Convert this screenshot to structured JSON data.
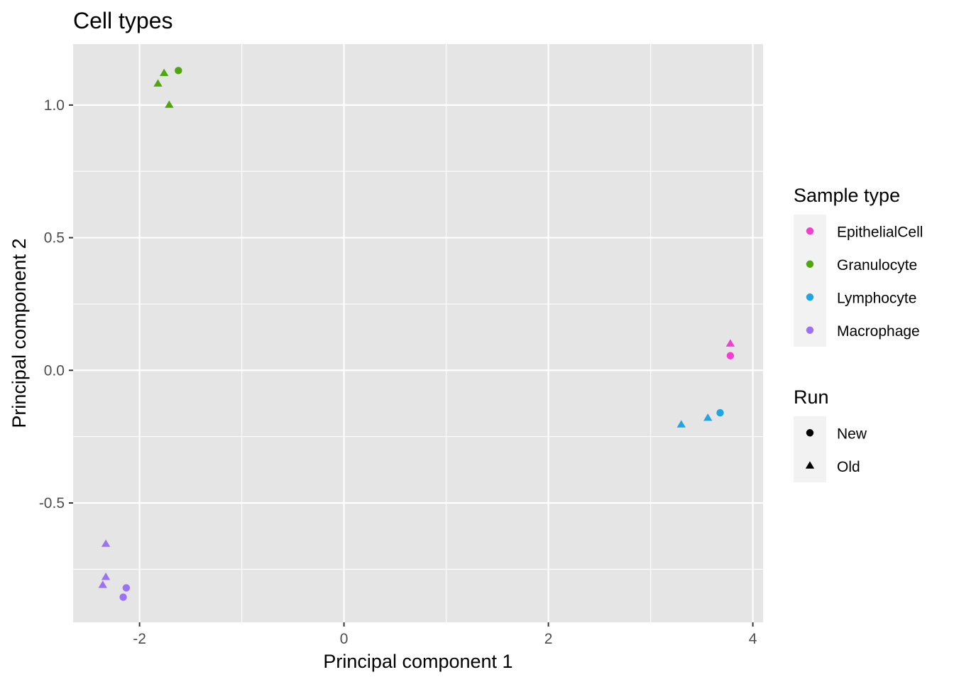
{
  "chart_data": {
    "type": "scatter",
    "title": "Cell types",
    "xlabel": "Principal component 1",
    "ylabel": "Principal component 2",
    "xlim": [
      -2.65,
      4.1
    ],
    "ylim": [
      -0.95,
      1.23
    ],
    "x_ticks": [
      -2,
      0,
      2,
      4
    ],
    "x_tick_labels": [
      "-2",
      "0",
      "2",
      "4"
    ],
    "y_ticks": [
      -0.5,
      0.0,
      0.5,
      1.0
    ],
    "y_tick_labels": [
      "-0.5",
      "0.0",
      "0.5",
      "1.0"
    ],
    "grid": true,
    "legend_position": "right",
    "colors": {
      "panel_bg": "#e5e5e5",
      "grid": "#ffffff",
      "EpithelialCell": "#f23fd1",
      "Granulocyte": "#4fa60e",
      "Lymphocyte": "#1fa5e2",
      "Macrophage": "#9b72f6"
    },
    "legends": [
      {
        "title": "Sample type",
        "entries": [
          {
            "label": "EpithelialCell",
            "shape": "circle",
            "color": "#f23fd1"
          },
          {
            "label": "Granulocyte",
            "shape": "circle",
            "color": "#4fa60e"
          },
          {
            "label": "Lymphocyte",
            "shape": "circle",
            "color": "#1fa5e2"
          },
          {
            "label": "Macrophage",
            "shape": "circle",
            "color": "#9b72f6"
          }
        ]
      },
      {
        "title": "Run",
        "entries": [
          {
            "label": "New",
            "shape": "circle",
            "color": "#000000"
          },
          {
            "label": "Old",
            "shape": "triangle",
            "color": "#000000"
          }
        ]
      }
    ],
    "points": [
      {
        "x": -1.62,
        "y": 1.13,
        "type": "Granulocyte",
        "run": "New"
      },
      {
        "x": -1.76,
        "y": 1.12,
        "type": "Granulocyte",
        "run": "Old"
      },
      {
        "x": -1.82,
        "y": 1.08,
        "type": "Granulocyte",
        "run": "Old"
      },
      {
        "x": -1.71,
        "y": 1.0,
        "type": "Granulocyte",
        "run": "Old"
      },
      {
        "x": 3.78,
        "y": 0.1,
        "type": "EpithelialCell",
        "run": "Old"
      },
      {
        "x": 3.78,
        "y": 0.055,
        "type": "EpithelialCell",
        "run": "New"
      },
      {
        "x": 3.68,
        "y": -0.16,
        "type": "Lymphocyte",
        "run": "New"
      },
      {
        "x": 3.56,
        "y": -0.18,
        "type": "Lymphocyte",
        "run": "Old"
      },
      {
        "x": 3.3,
        "y": -0.205,
        "type": "Lymphocyte",
        "run": "Old"
      },
      {
        "x": -2.33,
        "y": -0.655,
        "type": "Macrophage",
        "run": "Old"
      },
      {
        "x": -2.33,
        "y": -0.78,
        "type": "Macrophage",
        "run": "Old"
      },
      {
        "x": -2.36,
        "y": -0.81,
        "type": "Macrophage",
        "run": "Old"
      },
      {
        "x": -2.13,
        "y": -0.82,
        "type": "Macrophage",
        "run": "New"
      },
      {
        "x": -2.16,
        "y": -0.855,
        "type": "Macrophage",
        "run": "New"
      }
    ]
  }
}
